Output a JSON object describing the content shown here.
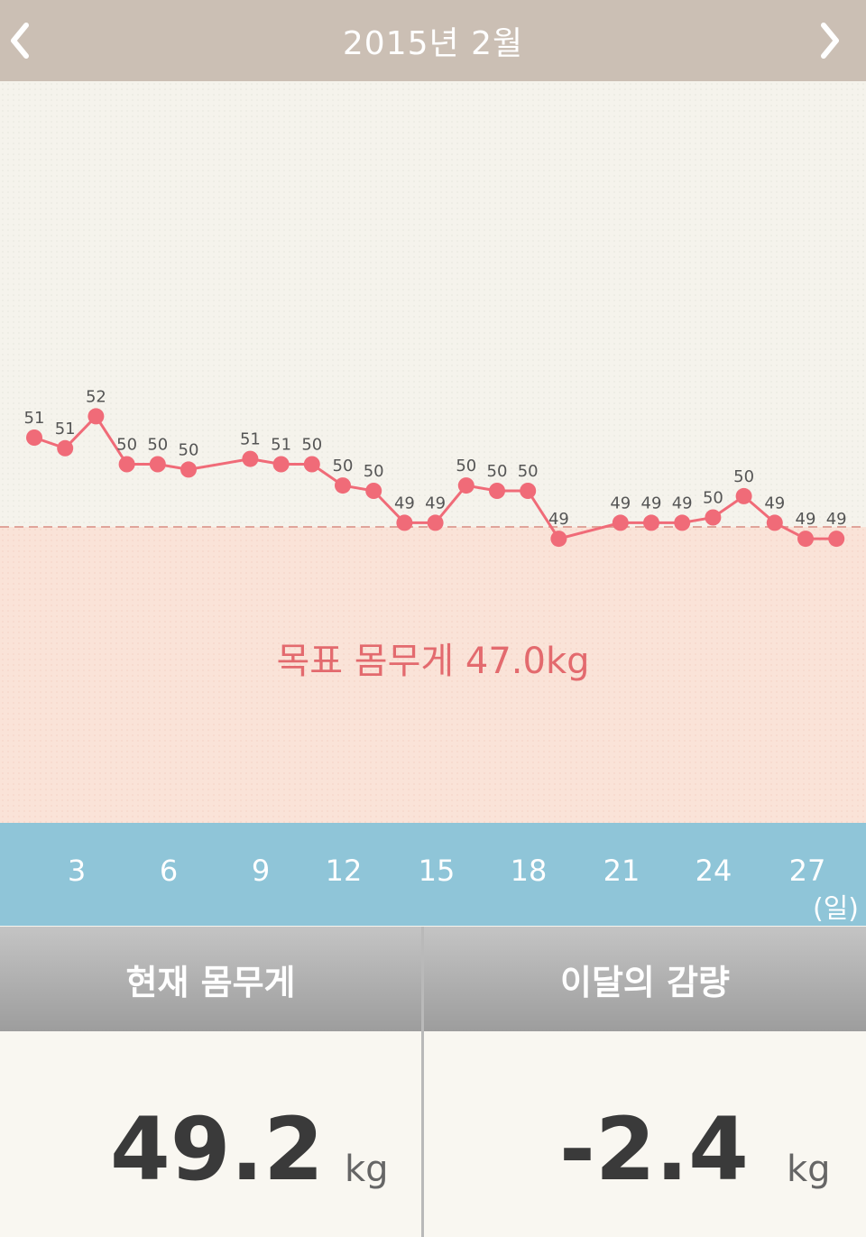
{
  "header": {
    "title": "2015년 2월"
  },
  "goal": {
    "label": "목표 몸무게 47.0kg",
    "weight": 47.0
  },
  "chart_data": {
    "type": "line",
    "x": [
      1,
      2,
      3,
      4,
      5,
      6,
      8,
      9,
      10,
      11,
      12,
      13,
      14,
      15,
      16,
      17,
      18,
      20,
      21,
      22,
      23,
      24,
      25,
      26,
      27
    ],
    "labels": [
      "51",
      "51",
      "52",
      "50",
      "50",
      "50",
      "51",
      "51",
      "50",
      "50",
      "50",
      "49",
      "49",
      "50",
      "50",
      "50",
      "49",
      "49",
      "49",
      "49",
      "50",
      "50",
      "49",
      "49",
      "49"
    ],
    "xticks": [
      "3",
      "6",
      "9",
      "12",
      "15",
      "18",
      "21",
      "24",
      "27"
    ],
    "xunit": "(일)",
    "color": "#f06b78"
  },
  "stats": {
    "current": {
      "label": "현재 몸무게",
      "value": "49.2",
      "unit": "kg"
    },
    "change": {
      "label": "이달의 감량",
      "value": "-2.4",
      "unit": "kg"
    }
  }
}
